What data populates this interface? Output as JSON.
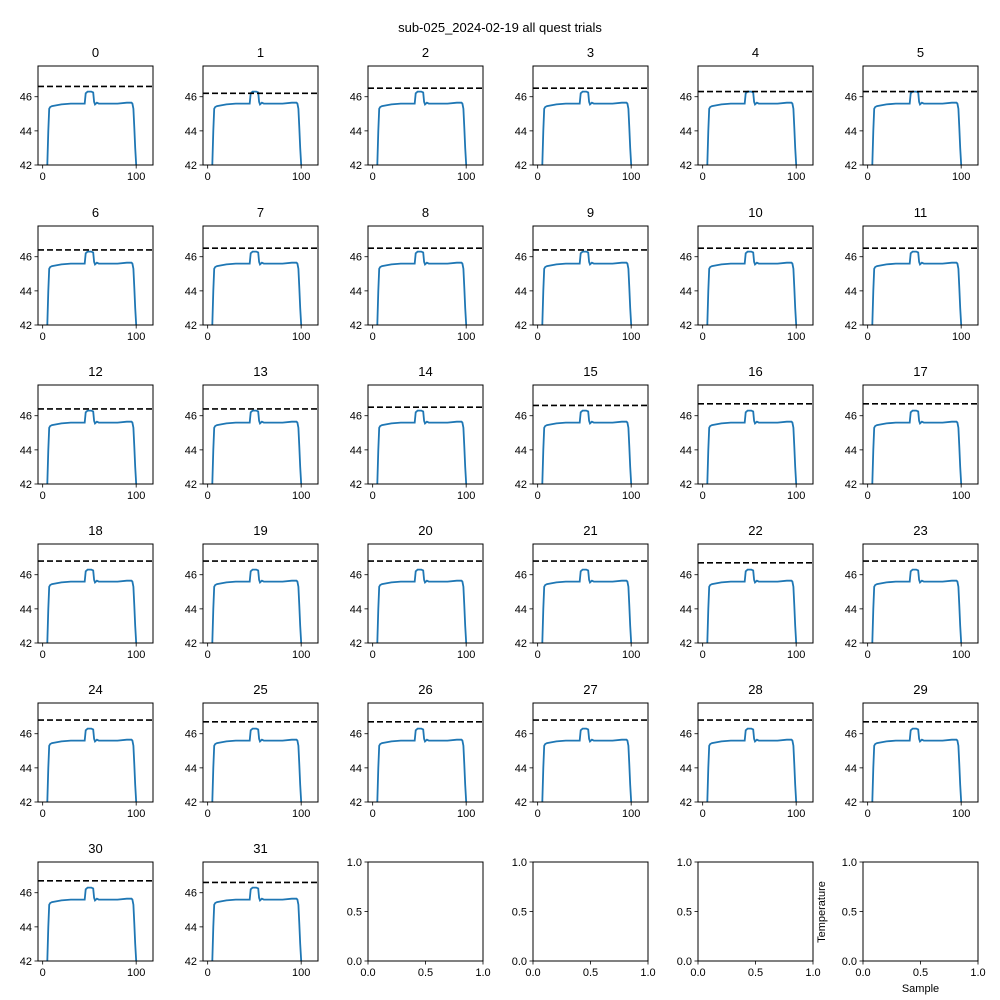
{
  "title": "sub-025_2024-02-19 all quest trials",
  "colors": {
    "trace": "#1f77b4",
    "threshold": "#000000",
    "axes": "#000000"
  },
  "chart_data": {
    "type": "line",
    "layout_grid": "6x6",
    "n_trials": 32,
    "panel_titles": [
      "0",
      "1",
      "2",
      "3",
      "4",
      "5",
      "6",
      "7",
      "8",
      "9",
      "10",
      "11",
      "12",
      "13",
      "14",
      "15",
      "16",
      "17",
      "18",
      "19",
      "20",
      "21",
      "22",
      "23",
      "24",
      "25",
      "26",
      "27",
      "28",
      "29",
      "30",
      "31"
    ],
    "xlim": [
      -5,
      118
    ],
    "ylim": [
      42,
      47.8
    ],
    "xticks": [
      0,
      100
    ],
    "yticks": [
      42,
      44,
      46
    ],
    "base_trace": {
      "x": [
        5,
        6,
        7,
        8,
        10,
        20,
        30,
        40,
        45,
        46,
        48,
        52,
        54,
        55,
        56,
        58,
        60,
        70,
        80,
        90,
        95,
        96,
        97,
        98,
        99,
        100,
        101
      ],
      "y": [
        42.0,
        44.0,
        45.3,
        45.4,
        45.45,
        45.55,
        45.6,
        45.6,
        45.6,
        46.2,
        46.3,
        46.3,
        46.25,
        45.7,
        45.55,
        45.65,
        45.6,
        45.6,
        45.6,
        45.65,
        45.65,
        45.6,
        45.3,
        44.2,
        43.0,
        42.0,
        41.5
      ]
    },
    "thresholds": [
      46.6,
      46.2,
      46.5,
      46.5,
      46.3,
      46.3,
      46.4,
      46.5,
      46.5,
      46.4,
      46.5,
      46.5,
      46.4,
      46.4,
      46.5,
      46.6,
      46.7,
      46.7,
      46.8,
      46.8,
      46.8,
      46.8,
      46.7,
      46.8,
      46.8,
      46.7,
      46.7,
      46.8,
      46.8,
      46.7,
      46.7,
      46.6
    ],
    "empty_axes": {
      "xlim": [
        0,
        1
      ],
      "ylim": [
        0,
        1
      ],
      "xticks": [
        "0.0",
        "0.5",
        "1.0"
      ],
      "yticks": [
        "0.0",
        "0.5",
        "1.0"
      ],
      "xlabel": "Sample",
      "ylabel": "Temperature"
    },
    "n_empty_axes": 4
  }
}
